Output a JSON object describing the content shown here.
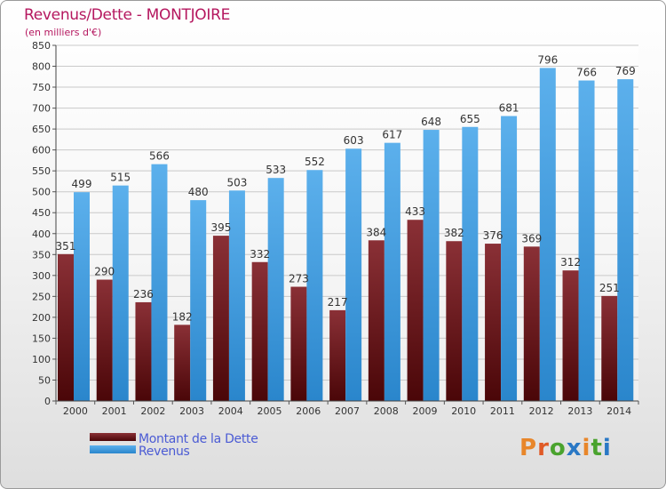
{
  "header": {
    "title": "Revenus/Dette - MONTJOIRE",
    "subtitle": "(en milliers d'€)"
  },
  "legend": {
    "items": [
      {
        "label": "Montant de la Dette",
        "color": "#6e1a1e"
      },
      {
        "label": "Revenus",
        "color": "#4ba3e3"
      }
    ]
  },
  "logo": {
    "text": "Proxiti",
    "letter_colors": [
      "#e8862a",
      "#e05a26",
      "#4aa32e",
      "#2a78c5",
      "#e8862a",
      "#4aa32e",
      "#2a78c5"
    ]
  },
  "chart_data": {
    "type": "bar",
    "title": "Revenus/Dette - MONTJOIRE",
    "subtitle": "(en milliers d'€)",
    "categories": [
      "2000",
      "2001",
      "2002",
      "2003",
      "2004",
      "2005",
      "2006",
      "2007",
      "2008",
      "2009",
      "2010",
      "2011",
      "2012",
      "2013",
      "2014"
    ],
    "series": [
      {
        "name": "Montant de la Dette",
        "color": "#6e1a1e",
        "values": [
          351,
          290,
          236,
          182,
          395,
          332,
          273,
          217,
          384,
          433,
          382,
          376,
          369,
          312,
          251
        ]
      },
      {
        "name": "Revenus",
        "color": "#4ba3e3",
        "values": [
          499,
          515,
          566,
          480,
          503,
          533,
          552,
          603,
          617,
          648,
          655,
          681,
          796,
          766,
          769
        ]
      }
    ],
    "ylim": [
      0,
      850
    ],
    "yticks": [
      0,
      50,
      100,
      150,
      200,
      250,
      300,
      350,
      400,
      450,
      500,
      550,
      600,
      650,
      700,
      750,
      800,
      850
    ],
    "grid": true,
    "legend_position": "bottom-left"
  }
}
